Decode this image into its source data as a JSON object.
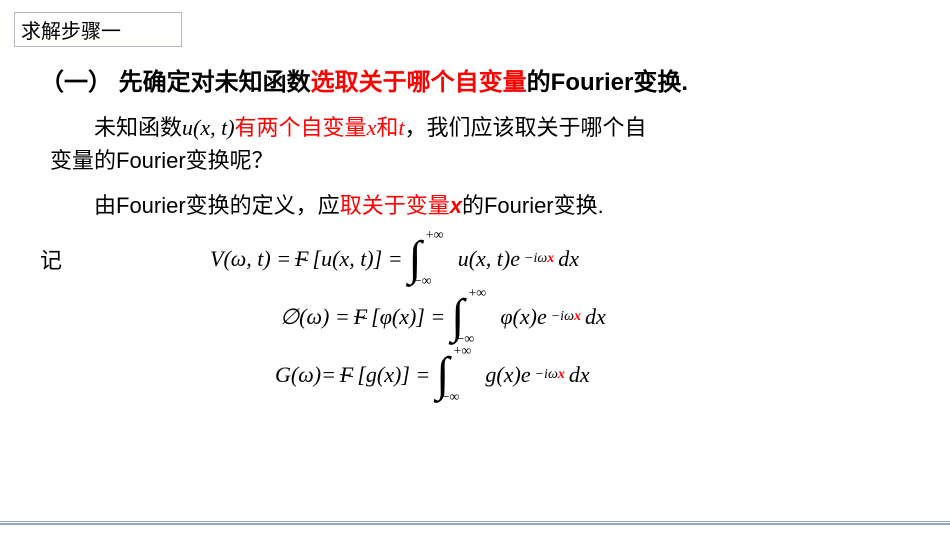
{
  "titleBox": "求解步骤一",
  "heading": {
    "part1": "（一） 先确定对未知函数",
    "red1": "选取关于哪个自变量",
    "part2": "的Fourier变换."
  },
  "para1": {
    "t1": "未知函数",
    "m1": "u(x, t)",
    "red1": "有两个自变量",
    "mx": "x",
    "red2": "和",
    "mt": "t",
    "t2": "，我们应该取关于哪个自",
    "t3": "变量的Fourier变换呢？"
  },
  "para2": {
    "t1": "由Fourier变换的定义，应",
    "red1": "取关于变量",
    "mx": "x",
    "t2": "的Fourier变换."
  },
  "eqLabel": "记",
  "eq1": {
    "lhs1": "V(ω, t)  =  ",
    "F": "F",
    "br1": "[u(x, t)] = ",
    "int_upper": "+∞",
    "int_lower": "−∞",
    "body1": "u(x, t)e",
    "exp1": "−iω",
    "expx": "x",
    "body2": "dx"
  },
  "eq2": {
    "lhs1": "∅(ω) = ",
    "F": "F",
    "br1": "[φ(x)] = ",
    "int_upper": "+∞",
    "int_lower": "−∞",
    "body1": "φ(x)e",
    "exp1": "−iω",
    "expx": "x",
    "body2": "dx"
  },
  "eq3": {
    "lhs1": "G(ω)=",
    "F": "F",
    "br1": "[g(x)] = ",
    "int_upper": "+∞",
    "int_lower": "−∞",
    "body1": "g(x)e",
    "exp1": "−iω",
    "expx": "x",
    "body2": "dx"
  }
}
